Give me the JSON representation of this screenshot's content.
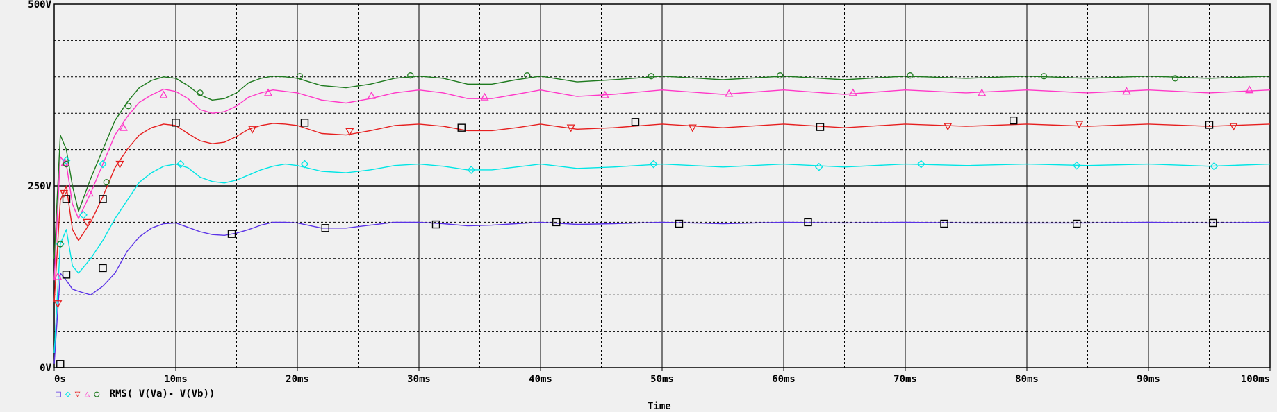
{
  "chart_data": {
    "type": "line",
    "xlabel": "Time",
    "ylabel": "",
    "xlim": [
      0,
      100
    ],
    "ylim": [
      0,
      500
    ],
    "x_ticks": [
      "0s",
      "10ms",
      "20ms",
      "30ms",
      "40ms",
      "50ms",
      "60ms",
      "70ms",
      "80ms",
      "90ms",
      "100ms"
    ],
    "y_ticks": [
      "0V",
      "250V",
      "500V"
    ],
    "grid": true,
    "legend_text": "RMS( V(Va)- V(Vb))",
    "x": [
      0,
      0.5,
      1,
      1.5,
      2,
      3,
      4,
      5,
      6,
      7,
      8,
      9,
      10,
      11,
      12,
      13,
      14,
      15,
      16,
      17,
      18,
      19,
      20,
      22,
      24,
      26,
      28,
      30,
      32,
      34,
      36,
      38,
      40,
      43,
      46,
      50,
      55,
      60,
      65,
      70,
      75,
      80,
      85,
      90,
      95,
      100
    ],
    "series": [
      {
        "color": "#5a32e6",
        "marker": "square",
        "values": [
          5,
          130,
          120,
          108,
          105,
          100,
          112,
          130,
          160,
          180,
          192,
          198,
          199,
          193,
          187,
          183,
          182,
          185,
          190,
          196,
          200,
          200,
          199,
          192,
          192,
          196,
          200,
          200,
          198,
          195,
          196,
          198,
          200,
          197,
          198,
          200,
          198,
          200,
          199,
          200,
          199,
          199,
          199,
          200,
          199,
          200
        ]
      },
      {
        "color": "#00e5e5",
        "marker": "diamond",
        "values": [
          20,
          170,
          190,
          140,
          130,
          150,
          175,
          205,
          230,
          255,
          268,
          277,
          280,
          275,
          262,
          256,
          254,
          258,
          265,
          272,
          277,
          280,
          278,
          270,
          268,
          272,
          278,
          280,
          277,
          272,
          272,
          276,
          280,
          274,
          276,
          280,
          276,
          280,
          276,
          280,
          278,
          280,
          278,
          280,
          277,
          280
        ]
      },
      {
        "color": "#e61e1e",
        "marker": "triangle-down",
        "values": [
          90,
          230,
          250,
          190,
          175,
          200,
          235,
          275,
          300,
          320,
          330,
          335,
          333,
          322,
          312,
          308,
          310,
          318,
          328,
          333,
          336,
          335,
          333,
          322,
          320,
          326,
          333,
          335,
          332,
          326,
          326,
          330,
          335,
          328,
          330,
          335,
          330,
          335,
          330,
          335,
          332,
          335,
          332,
          335,
          332,
          335
        ]
      },
      {
        "color": "#ff38c8",
        "marker": "triangle-up",
        "values": [
          120,
          290,
          280,
          225,
          205,
          240,
          280,
          320,
          345,
          365,
          375,
          383,
          380,
          370,
          355,
          350,
          352,
          360,
          372,
          378,
          382,
          380,
          378,
          368,
          364,
          370,
          378,
          382,
          378,
          370,
          370,
          376,
          382,
          373,
          376,
          382,
          376,
          382,
          376,
          382,
          378,
          382,
          378,
          382,
          378,
          382
        ]
      },
      {
        "color": "#1e7a1e",
        "marker": "circle",
        "values": [
          150,
          320,
          300,
          250,
          215,
          260,
          300,
          340,
          365,
          385,
          395,
          400,
          398,
          388,
          375,
          368,
          370,
          378,
          392,
          398,
          401,
          400,
          398,
          388,
          385,
          390,
          398,
          401,
          398,
          390,
          390,
          396,
          401,
          393,
          396,
          401,
          396,
          401,
          396,
          401,
          398,
          401,
          398,
          401,
          398,
          401
        ]
      }
    ],
    "markers": {
      "square": [
        [
          0.5,
          5
        ],
        [
          1,
          232
        ],
        [
          1,
          128
        ],
        [
          4,
          232
        ],
        [
          4,
          137
        ],
        [
          10,
          337
        ],
        [
          14.6,
          184
        ],
        [
          20.6,
          337
        ],
        [
          22.3,
          192
        ],
        [
          31.4,
          197
        ],
        [
          33.5,
          330
        ],
        [
          41.3,
          200
        ],
        [
          47.8,
          338
        ],
        [
          51.4,
          198
        ],
        [
          62,
          200
        ],
        [
          63,
          331
        ],
        [
          73.2,
          198
        ],
        [
          78.9,
          340
        ],
        [
          84.1,
          198
        ],
        [
          95,
          334
        ],
        [
          95.3,
          199
        ]
      ],
      "diamond": [
        [
          0.5,
          170
        ],
        [
          1,
          285
        ],
        [
          2.4,
          210
        ],
        [
          4,
          280
        ],
        [
          10.4,
          280
        ],
        [
          20.6,
          280
        ],
        [
          34.3,
          272
        ],
        [
          49.3,
          280
        ],
        [
          62.9,
          276
        ],
        [
          71.3,
          280
        ],
        [
          84.1,
          278
        ],
        [
          95.4,
          277
        ]
      ],
      "triangle-down": [
        [
          0.3,
          88
        ],
        [
          0.8,
          240
        ],
        [
          2.7,
          200
        ],
        [
          5.4,
          280
        ],
        [
          16.3,
          328
        ],
        [
          24.3,
          325
        ],
        [
          42.5,
          330
        ],
        [
          52.5,
          330
        ],
        [
          73.5,
          332
        ],
        [
          84.3,
          335
        ],
        [
          97,
          332
        ]
      ],
      "triangle-up": [
        [
          0.3,
          125
        ],
        [
          0.9,
          282
        ],
        [
          2.9,
          240
        ],
        [
          5.7,
          330
        ],
        [
          9,
          375
        ],
        [
          17.6,
          378
        ],
        [
          26.1,
          374
        ],
        [
          35.4,
          372
        ],
        [
          45.3,
          375
        ],
        [
          55.5,
          377
        ],
        [
          65.7,
          378
        ],
        [
          76.3,
          378
        ],
        [
          88.2,
          380
        ],
        [
          98.3,
          382
        ]
      ],
      "circle": [
        [
          0.5,
          170
        ],
        [
          1,
          280
        ],
        [
          4.3,
          255
        ],
        [
          6.1,
          360
        ],
        [
          12,
          378
        ],
        [
          20.2,
          401
        ],
        [
          29.3,
          402
        ],
        [
          38.9,
          402
        ],
        [
          49.1,
          401
        ],
        [
          59.7,
          402
        ],
        [
          70.4,
          402
        ],
        [
          81.4,
          401
        ],
        [
          92.2,
          398
        ]
      ]
    }
  },
  "legend_icons": [
    "square",
    "diamond",
    "triangle-down",
    "triangle-up",
    "circle"
  ]
}
